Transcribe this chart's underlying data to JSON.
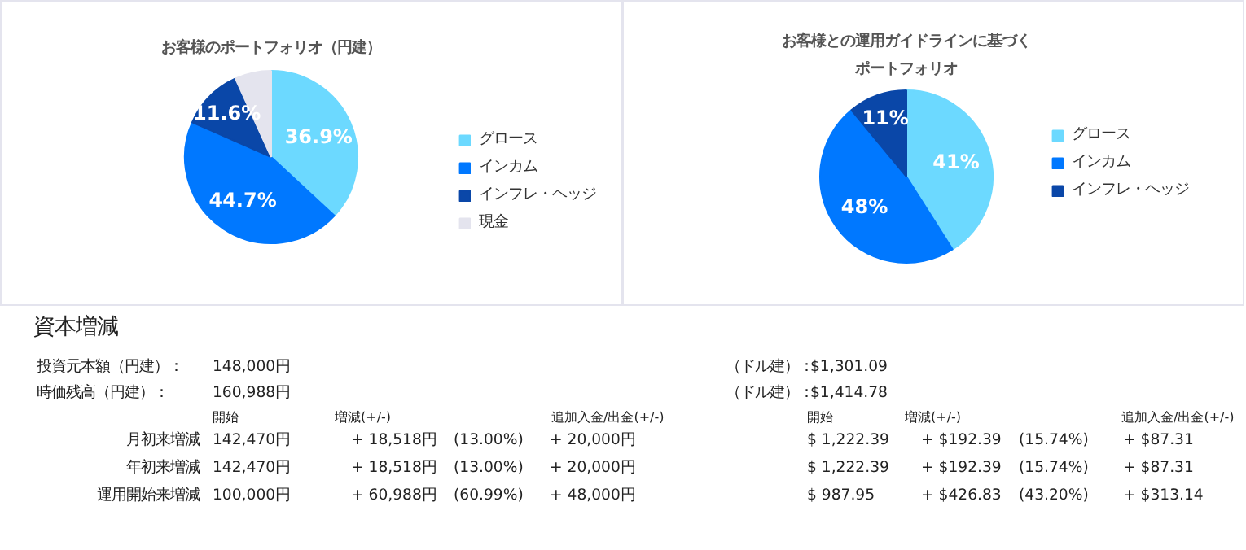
{
  "chart_data": [
    {
      "type": "pie",
      "title": "お客様のポートフォリオ（円建）",
      "categories": [
        "グロース",
        "インカム",
        "インフレ・ヘッジ",
        "現金"
      ],
      "values": [
        36.9,
        44.7,
        11.6,
        6.8
      ],
      "colors": [
        "#6cd9ff",
        "#0078ff",
        "#0a47a8",
        "#e4e4ee"
      ],
      "value_labels": [
        "36.9%",
        "44.7%",
        "11.6%",
        null
      ],
      "legend": "right"
    },
    {
      "type": "pie",
      "title": "お客様との運用ガイドラインに基づくポートフォリオ",
      "categories": [
        "グロース",
        "インカム",
        "インフレ・ヘッジ"
      ],
      "values": [
        41,
        48,
        11
      ],
      "colors": [
        "#6cd9ff",
        "#0078ff",
        "#0a47a8"
      ],
      "value_labels": [
        "41%",
        "48%",
        "11%"
      ],
      "legend": "right"
    },
    {
      "type": "other",
      "title": "資本増減",
      "annotations": [
        "投資元本額（円建）：",
        "148,000円",
        "（ドル建）：",
        "$1,301.09",
        "時価残高（円建）：",
        "160,988円",
        "（ドル建）：",
        "$1,414.78",
        "開始",
        "増減(+/-)",
        "追加入金/出金(+/-)",
        "開始",
        "増減(+/-)",
        "追加入金/出金(+/-)",
        "月初来増減",
        "142,470円",
        "+  18,518円",
        "(13.00%)",
        "+  20,000円",
        "$ 1,222.39",
        "+  $192.39",
        "(15.74%)",
        "+  $87.31",
        "年初来増減",
        "142,470円",
        "+  18,518円",
        "(13.00%)",
        "+  20,000円",
        "$ 1,222.39",
        "+  $192.39",
        "(15.74%)",
        "+  $87.31",
        "運用開始来増減",
        "100,000円",
        "+  60,988円",
        "(60.99%)",
        "+  48,000円",
        "$ 987.95",
        "+  $426.83",
        "(43.20%)",
        "+  $313.14"
      ]
    }
  ]
}
